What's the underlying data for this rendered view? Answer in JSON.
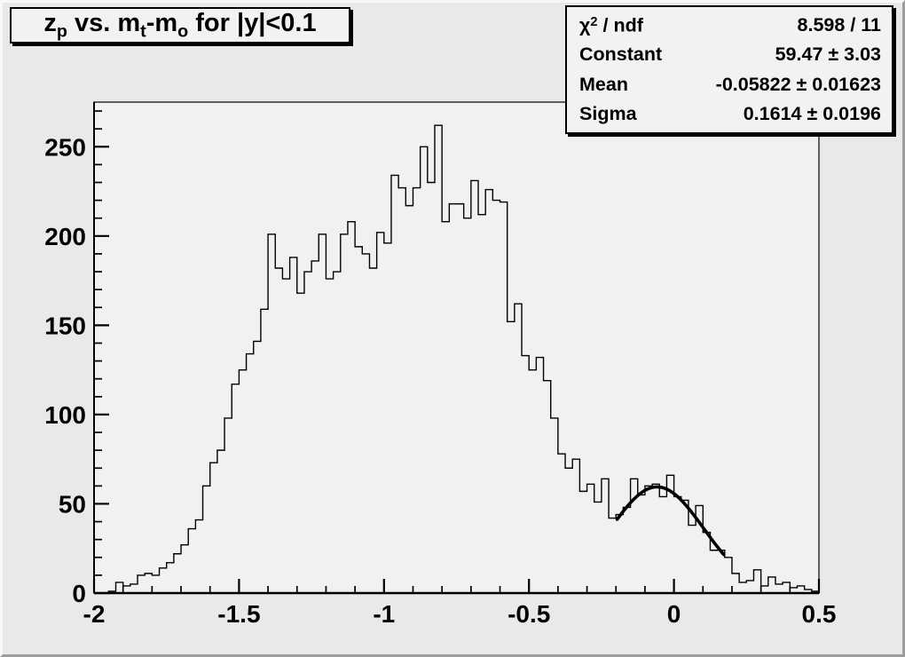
{
  "title": {
    "plain": "z_p vs. m_t-m_o for |y|<0.1",
    "segments": [
      {
        "t": "z"
      },
      {
        "t": "p",
        "sub": true
      },
      {
        "t": " vs. m"
      },
      {
        "t": "t",
        "sub": true
      },
      {
        "t": "-m"
      },
      {
        "t": "o",
        "sub": true
      },
      {
        "t": " for |y|<0.1"
      }
    ]
  },
  "stats": {
    "rows": [
      {
        "label_segments": [
          {
            "t": "χ"
          },
          {
            "t": "2",
            "sup": true
          },
          {
            "t": " / ndf"
          }
        ],
        "value": "8.598 / 11"
      },
      {
        "label_segments": [
          {
            "t": "Constant"
          }
        ],
        "value": "59.47",
        "error": "3.03"
      },
      {
        "label_segments": [
          {
            "t": "Mean"
          }
        ],
        "value": "-0.05822",
        "error": "0.01623"
      },
      {
        "label_segments": [
          {
            "t": "Sigma"
          }
        ],
        "value": "0.1614",
        "error": "0.0196"
      }
    ],
    "plus_minus": "±"
  },
  "chart_data": {
    "type": "bar",
    "subtype": "step-histogram",
    "title": "z_p vs. m_t-m_o for |y|<0.1",
    "xlabel": "",
    "ylabel": "",
    "xlim": [
      -2,
      0.5
    ],
    "ylim": [
      0,
      275
    ],
    "grid": false,
    "legend": false,
    "x_ticks_major": [
      -2,
      -1.5,
      -1,
      -0.5,
      0,
      0.5
    ],
    "x_tick_labels": [
      "-2",
      "-1.5",
      "-1",
      "-0.5",
      "0",
      "0.5"
    ],
    "x_minor_step": 0.1,
    "y_ticks_major": [
      0,
      50,
      100,
      150,
      200,
      250
    ],
    "y_tick_labels": [
      "0",
      "50",
      "100",
      "150",
      "200",
      "250"
    ],
    "y_minor_step": 10,
    "bins": {
      "x_start": -2,
      "bin_width": 0.025,
      "values": [
        0,
        0,
        1,
        6,
        4,
        5,
        10,
        11,
        10,
        14,
        17,
        22,
        27,
        36,
        41,
        60,
        73,
        80,
        98,
        117,
        125,
        134,
        141,
        159,
        201,
        182,
        176,
        188,
        168,
        180,
        186,
        201,
        176,
        180,
        201,
        208,
        194,
        190,
        182,
        202,
        196,
        234,
        227,
        217,
        227,
        250,
        230,
        262,
        208,
        218,
        218,
        210,
        231,
        212,
        226,
        220,
        219,
        152,
        162,
        133,
        125,
        132,
        119,
        98,
        78,
        70,
        75,
        57,
        61,
        51,
        64,
        42,
        44,
        48,
        64,
        55,
        60,
        61,
        54,
        66,
        54,
        52,
        38,
        49,
        34,
        24,
        24,
        20,
        11,
        6,
        7,
        13,
        4,
        9,
        5,
        6,
        3,
        4,
        2,
        1
      ]
    },
    "fit": {
      "type": "gaussian",
      "chi2": 8.598,
      "ndf": 11,
      "constant": 59.47,
      "constant_err": 3.03,
      "mean": -0.05822,
      "mean_err": 0.01623,
      "sigma": 0.1614,
      "sigma_err": 0.0196,
      "draw_range": [
        -0.196,
        0.172
      ]
    }
  },
  "colors": {
    "background": "#e9e9e9",
    "frame_bg": "#f1f1f1",
    "line": "#000000",
    "text": "#000000"
  }
}
